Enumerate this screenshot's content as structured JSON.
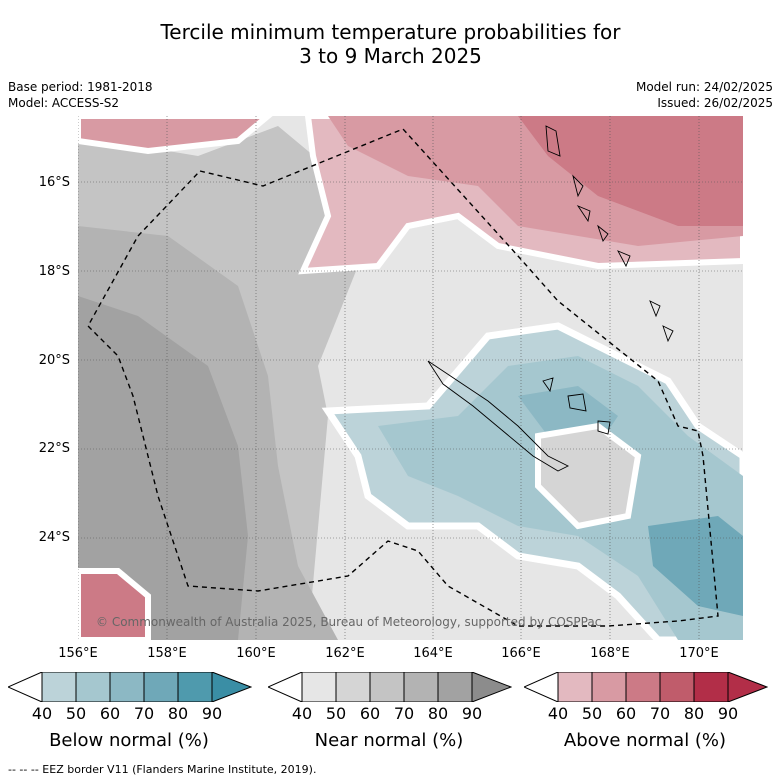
{
  "title": {
    "line1": "Tercile minimum temperature probabilities for",
    "line2": "3 to 9 March 2025"
  },
  "meta": {
    "base_period": "Base period: 1981-2018",
    "model": "Model: ACCESS-S2",
    "model_run": "Model run: 24/02/2025",
    "issued": "Issued: 26/02/2025"
  },
  "map": {
    "lat_labels": [
      "16°S",
      "18°S",
      "20°S",
      "22°S",
      "24°S"
    ],
    "lon_labels": [
      "156°E",
      "158°E",
      "160°E",
      "162°E",
      "164°E",
      "166°E",
      "168°E",
      "170°E"
    ],
    "copyright": "© Commonwealth of Australia 2025, Bureau of Meteorology, supported by COSPPac"
  },
  "legend": {
    "ticks": [
      "40",
      "50",
      "60",
      "70",
      "80",
      "90"
    ],
    "below": {
      "title": "Below normal (%)",
      "colors": [
        "#bcd3d9",
        "#a5c7cf",
        "#8cb8c4",
        "#6fa8b8",
        "#4f9aad",
        "#3a8ea5"
      ]
    },
    "near": {
      "title": "Near normal (%)",
      "colors": [
        "#e6e6e6",
        "#d5d5d5",
        "#c4c4c4",
        "#b3b3b3",
        "#a2a2a2",
        "#8c8c8c"
      ]
    },
    "above": {
      "title": "Above normal (%)",
      "colors": [
        "#e3b9c0",
        "#d89aa3",
        "#cc7a86",
        "#c05c6b",
        "#b22e48",
        "#b22e48"
      ]
    }
  },
  "footnote": "-- -- -- EEZ border V11 (Flanders Marine Institute, 2019)."
}
